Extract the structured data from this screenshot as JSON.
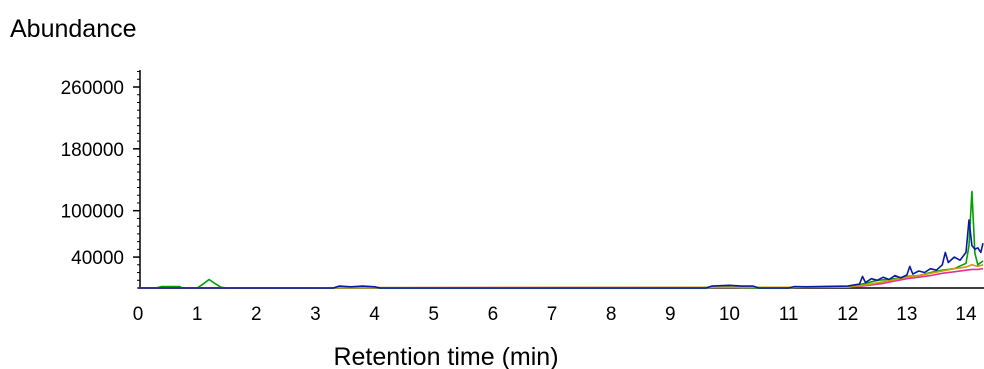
{
  "chart_data": {
    "type": "line",
    "title": "",
    "xlabel": "Retention time (min)",
    "ylabel": "Abundance",
    "xlim": [
      0,
      14.3
    ],
    "ylim": [
      0,
      300000
    ],
    "xticks": [
      0,
      1,
      2,
      3,
      4,
      5,
      6,
      7,
      8,
      9,
      10,
      11,
      12,
      13,
      14
    ],
    "yticks": [
      40000,
      100000,
      180000,
      260000
    ],
    "grid": false,
    "legend": "none",
    "series": [
      {
        "color": "#00a000",
        "x": [
          0,
          0.3,
          0.4,
          0.7,
          0.75,
          1.0,
          1.1,
          1.2,
          1.3,
          1.4,
          1.5,
          3.3,
          3.5,
          3.9,
          4.0,
          9.6,
          9.8,
          10.0,
          10.3,
          11.0,
          11.2,
          12.0,
          12.3,
          12.5,
          12.8,
          13.0,
          13.2,
          13.4,
          13.6,
          13.8,
          14.0,
          14.05,
          14.1,
          14.15,
          14.2,
          14.3
        ],
        "y": [
          0,
          0,
          2000,
          2000,
          0,
          0,
          5000,
          11000,
          6000,
          1000,
          0,
          0,
          1500,
          1500,
          0,
          0,
          1500,
          1500,
          0,
          0,
          1500,
          2000,
          6000,
          10000,
          12000,
          15000,
          16000,
          20000,
          23000,
          25000,
          32000,
          55000,
          125000,
          45000,
          30000,
          35000
        ]
      },
      {
        "color": "#e0309a",
        "x": [
          0,
          12.0,
          12.3,
          12.6,
          12.8,
          13.0,
          13.2,
          13.4,
          13.6,
          13.8,
          14.0,
          14.1,
          14.2,
          14.3
        ],
        "y": [
          0,
          1000,
          3000,
          6000,
          9000,
          12000,
          14000,
          16000,
          19000,
          21000,
          23000,
          24000,
          24000,
          25000
        ]
      },
      {
        "color": "#c8a000",
        "x": [
          0,
          12.0,
          12.3,
          12.6,
          12.8,
          13.0,
          13.2,
          13.4,
          13.6,
          13.8,
          14.0,
          14.1,
          14.2,
          14.3
        ],
        "y": [
          0,
          1000,
          4000,
          8000,
          11000,
          14000,
          16000,
          19000,
          22000,
          25000,
          27000,
          30000,
          28000,
          30000
        ]
      },
      {
        "color": "#0a1aa0",
        "x": [
          0,
          3.3,
          3.4,
          3.6,
          3.8,
          4.0,
          4.1,
          9.6,
          9.7,
          10.0,
          10.2,
          10.4,
          10.5,
          11.0,
          11.1,
          11.3,
          12.0,
          12.2,
          12.25,
          12.3,
          12.4,
          12.5,
          12.6,
          12.7,
          12.8,
          12.9,
          13.0,
          13.05,
          13.1,
          13.2,
          13.3,
          13.4,
          13.5,
          13.6,
          13.65,
          13.7,
          13.8,
          13.9,
          14.0,
          14.05,
          14.1,
          14.15,
          14.2,
          14.25,
          14.3
        ],
        "y": [
          0,
          0,
          2500,
          1500,
          2500,
          1500,
          0,
          0,
          2500,
          3500,
          2500,
          2500,
          0,
          0,
          2000,
          1500,
          2500,
          5000,
          15000,
          7000,
          12000,
          10000,
          14000,
          11000,
          16000,
          13000,
          17000,
          28000,
          18000,
          22000,
          20000,
          25000,
          23000,
          30000,
          46000,
          33000,
          40000,
          36000,
          46000,
          88000,
          55000,
          50000,
          52000,
          46000,
          58000
        ]
      }
    ]
  }
}
